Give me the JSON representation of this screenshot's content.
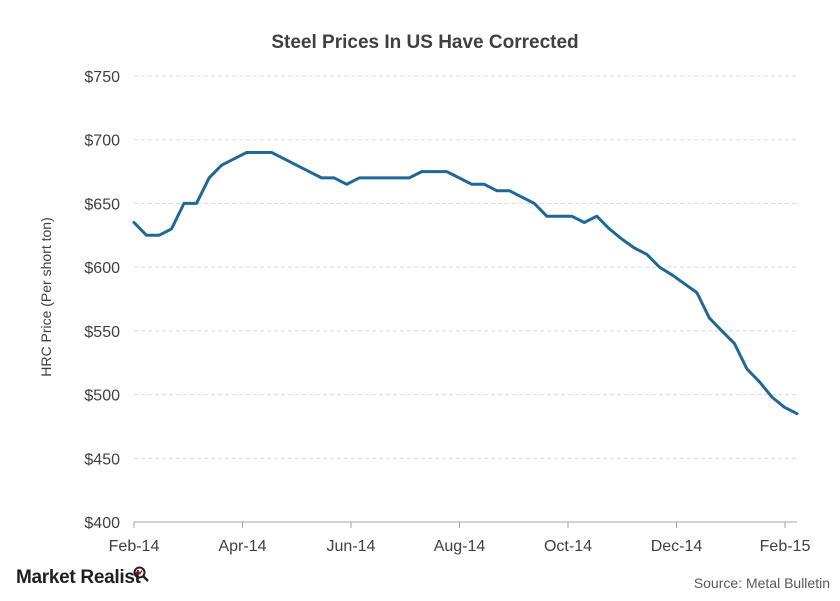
{
  "chart_data": {
    "type": "line",
    "title": "Steel Prices In US Have Corrected",
    "xlabel": "",
    "ylabel": "HRC Price (Per short ton)",
    "ylim": [
      400,
      750
    ],
    "yticks": [
      400,
      450,
      500,
      550,
      600,
      650,
      700,
      750
    ],
    "ytick_labels": [
      "$400",
      "$450",
      "$500",
      "$550",
      "$600",
      "$650",
      "$700",
      "$750"
    ],
    "xticks": [
      "Feb-14",
      "Apr-14",
      "Jun-14",
      "Aug-14",
      "Oct-14",
      "Dec-14",
      "Feb-15"
    ],
    "grid": true,
    "legend": "none",
    "series_color": "#1f6896",
    "series": [
      {
        "values": [
          635,
          625,
          625,
          630,
          650,
          650,
          670,
          680,
          685,
          690,
          690,
          690,
          685,
          680,
          675,
          670,
          670,
          665,
          670,
          670,
          670,
          670,
          670,
          675,
          675,
          675,
          670,
          665,
          665,
          660,
          660,
          655,
          650,
          640,
          640,
          640,
          635,
          640,
          630,
          622,
          615,
          610,
          600,
          594,
          587,
          580,
          560,
          550,
          540,
          520,
          510,
          498,
          490,
          485
        ]
      }
    ]
  },
  "branding": {
    "logo_text": "Market Realist",
    "source": "Source: Metal Bulletin"
  }
}
